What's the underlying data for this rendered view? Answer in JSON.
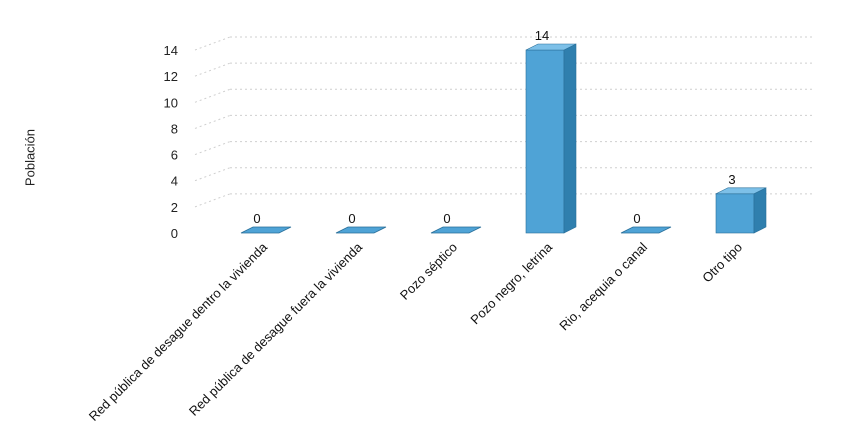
{
  "chart_data": {
    "type": "bar",
    "ylabel": "Población",
    "xlabel": "",
    "ylim": [
      0,
      14
    ],
    "yticks": [
      0,
      2,
      4,
      6,
      8,
      10,
      12,
      14
    ],
    "grid": true,
    "style": "3d-column",
    "bar_color": "#4fa3d6",
    "bar_side_color": "#2f7fae",
    "bar_top_color": "#7dc0e8",
    "categories": [
      "Red pública de desague dentro la vivienda",
      "Red pública de desague fuera la vivienda",
      "Pozo séptico",
      "Pozo negro, letrina",
      "Rio, acequia o canal",
      "Otro tipo"
    ],
    "values": [
      0,
      0,
      0,
      14,
      0,
      3
    ],
    "data_labels": [
      "0",
      "0",
      "0",
      "14",
      "0",
      "3"
    ]
  }
}
